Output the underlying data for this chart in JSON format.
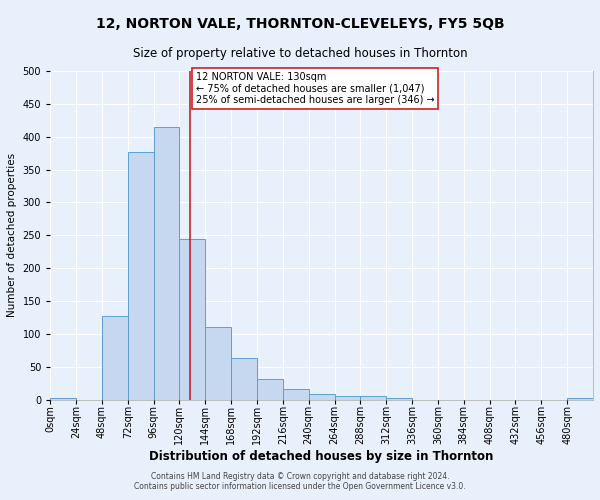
{
  "title": "12, NORTON VALE, THORNTON-CLEVELEYS, FY5 5QB",
  "subtitle": "Size of property relative to detached houses in Thornton",
  "xlabel": "Distribution of detached houses by size in Thornton",
  "ylabel": "Number of detached properties",
  "footnote1": "Contains HM Land Registry data © Crown copyright and database right 2024.",
  "footnote2": "Contains public sector information licensed under the Open Government Licence v3.0.",
  "bin_labels": [
    "0sqm",
    "24sqm",
    "48sqm",
    "72sqm",
    "96sqm",
    "120sqm",
    "144sqm",
    "168sqm",
    "192sqm",
    "216sqm",
    "240sqm",
    "264sqm",
    "288sqm",
    "312sqm",
    "336sqm",
    "360sqm",
    "384sqm",
    "408sqm",
    "432sqm",
    "456sqm",
    "480sqm"
  ],
  "bar_values": [
    3,
    0,
    128,
    377,
    415,
    245,
    110,
    63,
    31,
    16,
    8,
    5,
    5,
    2,
    0,
    0,
    0,
    0,
    0,
    0,
    3
  ],
  "bar_color": "#c5d8f0",
  "bar_edge_color": "#5a9fd4",
  "background_color": "#e8f0fb",
  "grid_color": "#ffffff",
  "vline_x": 130,
  "vline_color": "#cc2222",
  "annotation_text": "12 NORTON VALE: 130sqm\n← 75% of detached houses are smaller (1,047)\n25% of semi-detached houses are larger (346) →",
  "annotation_box_color": "#ffffff",
  "annotation_box_edge": "#cc2222",
  "ylim": [
    0,
    500
  ],
  "yticks": [
    0,
    50,
    100,
    150,
    200,
    250,
    300,
    350,
    400,
    450,
    500
  ],
  "bin_size": 24,
  "n_bins": 21,
  "title_fontsize": 10,
  "subtitle_fontsize": 8.5,
  "xlabel_fontsize": 8.5,
  "ylabel_fontsize": 7.5,
  "tick_fontsize": 7,
  "annotation_fontsize": 7,
  "footnote_fontsize": 5.5
}
